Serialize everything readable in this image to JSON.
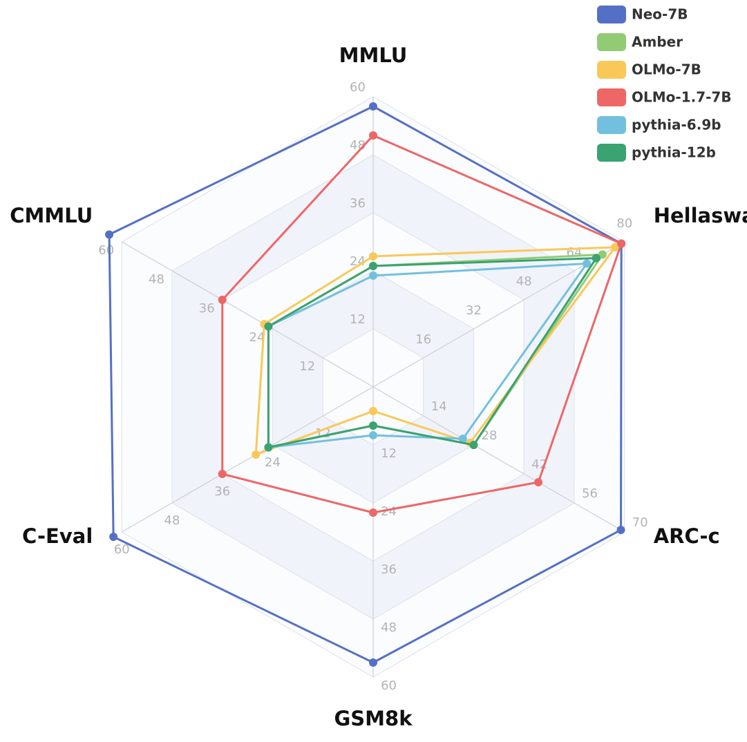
{
  "chart_data": {
    "type": "radar",
    "axes": [
      {
        "name": "MMLU",
        "max": 60,
        "ticks": [
          "12",
          "24",
          "36",
          "48",
          "60"
        ]
      },
      {
        "name": "Hellaswag",
        "max": 80,
        "ticks": [
          "16",
          "32",
          "48",
          "64",
          "80"
        ]
      },
      {
        "name": "ARC-c",
        "max": 70,
        "ticks": [
          "14",
          "28",
          "42",
          "56",
          "70"
        ]
      },
      {
        "name": "GSM8k",
        "max": 60,
        "ticks": [
          "12",
          "24",
          "36",
          "48",
          "60"
        ]
      },
      {
        "name": "C-Eval",
        "max": 60,
        "ticks": [
          "12",
          "24",
          "36",
          "48",
          "60"
        ]
      },
      {
        "name": "CMMLU",
        "max": 60,
        "ticks": [
          "12",
          "24",
          "36",
          "48",
          "60"
        ]
      }
    ],
    "series": [
      {
        "name": "Neo-7B",
        "color": "#5470c6",
        "values": [
          58,
          79,
          69,
          57,
          62,
          63
        ]
      },
      {
        "name": "Amber",
        "color": "#91cc75",
        "values": [
          25,
          73,
          28,
          8,
          25,
          25
        ]
      },
      {
        "name": "OLMo-7B",
        "color": "#fac858",
        "values": [
          27,
          77,
          27,
          5,
          28,
          26
        ]
      },
      {
        "name": "OLMo-1.7-7B",
        "color": "#ee6666",
        "values": [
          52,
          79,
          46,
          26,
          36,
          36
        ]
      },
      {
        "name": "pythia-6.9b",
        "color": "#73c0de",
        "values": [
          23,
          68,
          25,
          10,
          25,
          25
        ]
      },
      {
        "name": "pythia-12b",
        "color": "#3ba272",
        "values": [
          25,
          71,
          28,
          8,
          25,
          25
        ]
      }
    ],
    "grid": true,
    "legend_position": "top-right"
  }
}
